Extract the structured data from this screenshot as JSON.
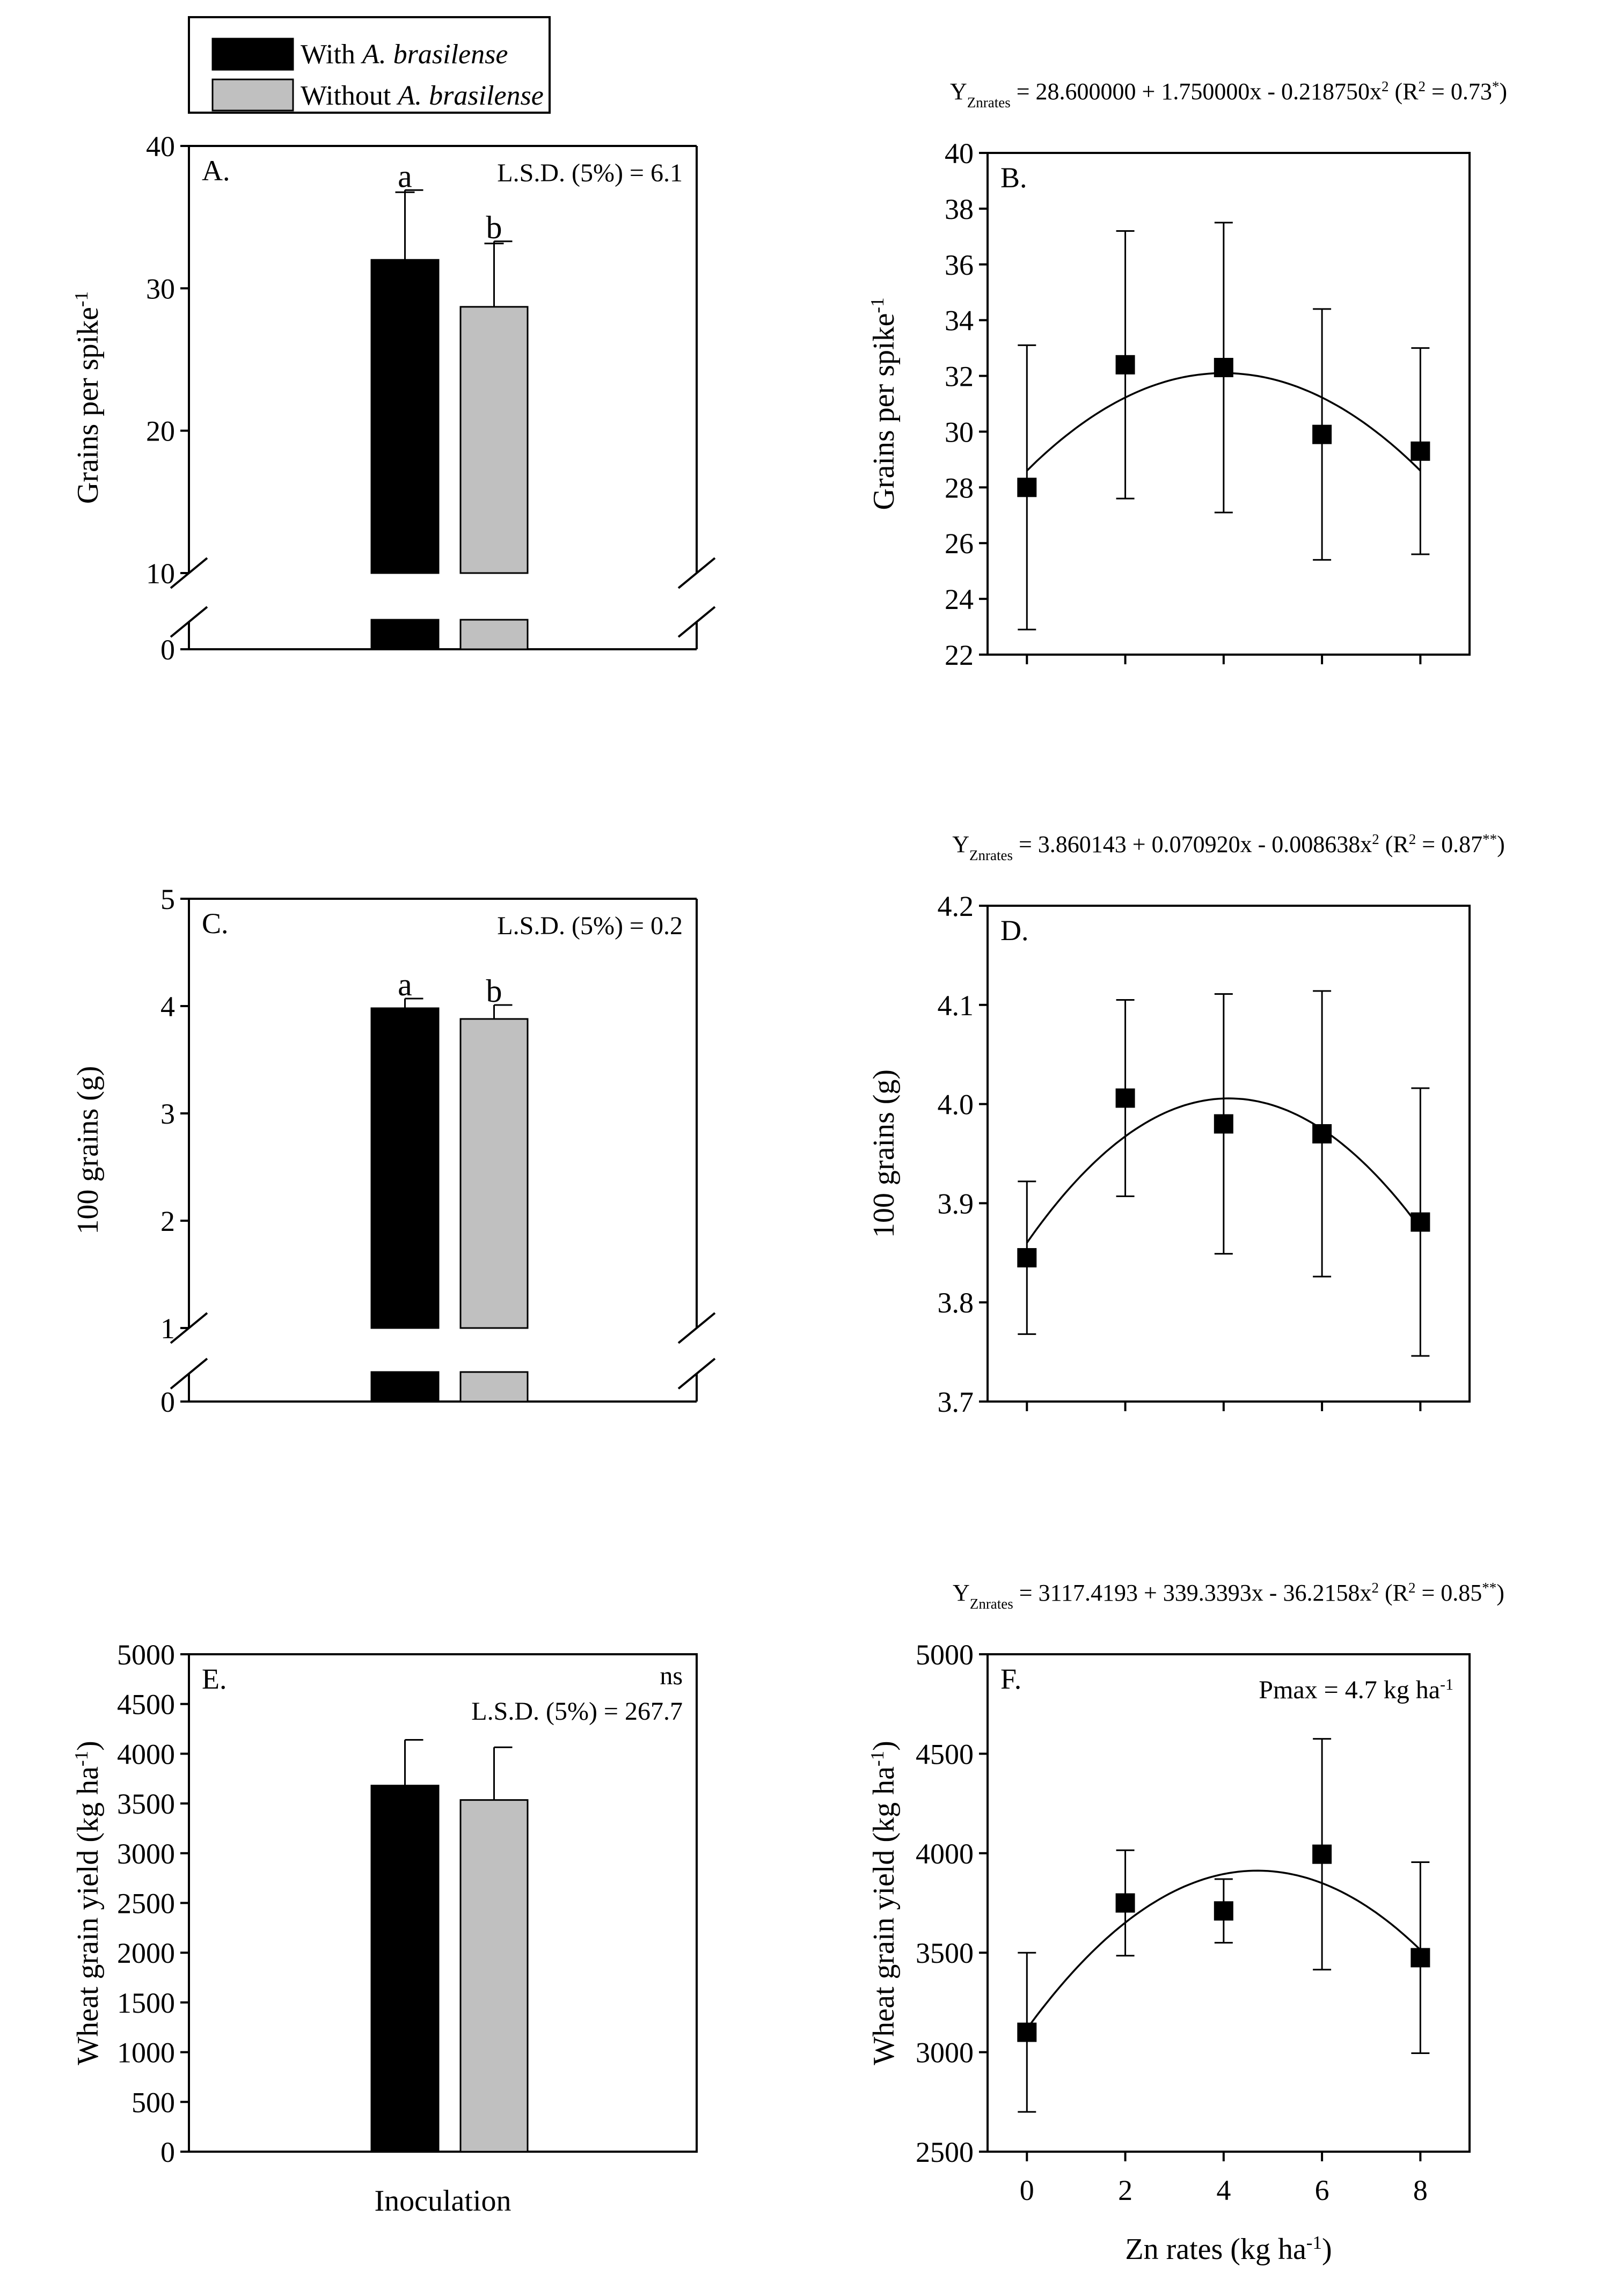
{
  "legend": {
    "with_prefix": "With ",
    "without_prefix": "Without ",
    "species": "A. brasilense",
    "colors": {
      "with": "#000000",
      "without": "#c0c0c0"
    }
  },
  "chart_data": [
    {
      "id": "A",
      "panel_label": "A.",
      "type": "bar",
      "ylabel": "Grains per spike",
      "ylabel_sup": "-1",
      "xlabel": "",
      "ylim": [
        0,
        40
      ],
      "axis_break": true,
      "yticks": [
        "0",
        "10",
        "20",
        "30",
        "40"
      ],
      "lsd": "L.S.D. (5%) = 6.1",
      "ns": "",
      "categories": [
        "With A. brasilense",
        "Without A. brasilense"
      ],
      "values": [
        32.0,
        28.7
      ],
      "errors": [
        4.9,
        4.6
      ],
      "letters": [
        "a",
        "b"
      ]
    },
    {
      "id": "B",
      "panel_label": "B.",
      "type": "scatter",
      "ylabel": "Grains per spike",
      "ylabel_sup": "-1",
      "xlabel": "",
      "x": [
        0,
        2,
        4,
        6,
        8
      ],
      "y": [
        28.0,
        32.4,
        32.3,
        29.9,
        29.3
      ],
      "errors": [
        5.1,
        4.8,
        5.2,
        4.5,
        3.7
      ],
      "ylim": [
        22,
        40
      ],
      "xlim": [
        -0.8,
        9.0
      ],
      "yticks": [
        "22",
        "24",
        "26",
        "28",
        "30",
        "32",
        "34",
        "36",
        "38",
        "40"
      ],
      "xticks": [],
      "fit": {
        "a": 28.6,
        "b": 1.75,
        "c": -0.21875
      },
      "eq_head": "Y",
      "eq_sub": "Znrates",
      "eq_body": " = 28.600000 +  1.750000x - 0.218750x",
      "eq_tail": " (R",
      "eq_r2": " = 0.73",
      "eq_sig": "*",
      "eq_close": ")",
      "pmax": ""
    },
    {
      "id": "C",
      "panel_label": "C.",
      "type": "bar",
      "ylabel": "100 grains (g)",
      "ylabel_sup": "",
      "xlabel": "",
      "ylim": [
        0,
        5
      ],
      "axis_break": true,
      "yticks": [
        "0",
        "1",
        "2",
        "3",
        "4",
        "5"
      ],
      "lsd": "L.S.D. (5%) = 0.2",
      "ns": "",
      "categories": [
        "With A. brasilense",
        "Without A. brasilense"
      ],
      "values": [
        3.98,
        3.88
      ],
      "errors": [
        0.09,
        0.13
      ],
      "letters": [
        "a",
        "b"
      ]
    },
    {
      "id": "D",
      "panel_label": "D.",
      "type": "scatter",
      "ylabel": "100 grains (g)",
      "ylabel_sup": "",
      "xlabel": "",
      "x": [
        0,
        2,
        4,
        6,
        8
      ],
      "y": [
        3.845,
        4.006,
        3.98,
        3.97,
        3.881
      ],
      "errors": [
        0.077,
        0.099,
        0.131,
        0.144,
        0.135
      ],
      "ylim": [
        3.7,
        4.2
      ],
      "xlim": [
        -0.8,
        9.0
      ],
      "yticks": [
        "3.7",
        "3.8",
        "3.9",
        "4.0",
        "4.1",
        "4.2"
      ],
      "xticks": [],
      "fit": {
        "a": 3.860143,
        "b": 0.07092,
        "c": -0.008638
      },
      "eq_head": "Y",
      "eq_sub": "Znrates",
      "eq_body": " = 3.860143 +  0.070920x - 0.008638x",
      "eq_tail": " (R",
      "eq_r2": " = 0.87",
      "eq_sig": "**",
      "eq_close": ")",
      "pmax": ""
    },
    {
      "id": "E",
      "panel_label": "E.",
      "type": "bar",
      "ylabel": "Wheat grain yield (kg ha",
      "ylabel_sup": "-1",
      "ylabel_tail": ")",
      "xlabel": "Inoculation",
      "ylim": [
        0,
        5000
      ],
      "axis_break": false,
      "yticks": [
        "0",
        "500",
        "1000",
        "1500",
        "2000",
        "2500",
        "3000",
        "3500",
        "4000",
        "4500",
        "5000"
      ],
      "lsd": "L.S.D. (5%) = 267.7",
      "ns": "ns",
      "categories": [
        "With A. brasilense",
        "Without A. brasilense"
      ],
      "values": [
        3680,
        3535
      ],
      "errors": [
        460,
        530
      ],
      "letters": [
        "",
        ""
      ]
    },
    {
      "id": "F",
      "panel_label": "F.",
      "type": "scatter",
      "ylabel": "Wheat grain yield (kg ha",
      "ylabel_sup": "-1",
      "ylabel_tail": ")",
      "xlabel": "Zn rates (kg ha",
      "xlabel_sup": "-1",
      "xlabel_tail": ")",
      "x": [
        0,
        2,
        4,
        6,
        8
      ],
      "y": [
        3100,
        3750,
        3710,
        3995,
        3475
      ],
      "errors": [
        400,
        265,
        160,
        580,
        480
      ],
      "ylim": [
        2500,
        5000
      ],
      "xlim": [
        -0.8,
        9.0
      ],
      "yticks": [
        "2500",
        "3000",
        "3500",
        "4000",
        "4500",
        "5000"
      ],
      "xticks": [
        "0",
        "2",
        "4",
        "6",
        "8"
      ],
      "fit": {
        "a": 3117.4193,
        "b": 339.3393,
        "c": -36.2158
      },
      "eq_head": "Y",
      "eq_sub": "Znrates",
      "eq_body": " = 3117.4193 +  339.3393x - 36.2158x",
      "eq_tail": " (R",
      "eq_r2": " = 0.85",
      "eq_sig": "**",
      "eq_close": ")",
      "pmax": "Pmax = 4.7 kg ha",
      "pmax_sup": "-1"
    }
  ]
}
